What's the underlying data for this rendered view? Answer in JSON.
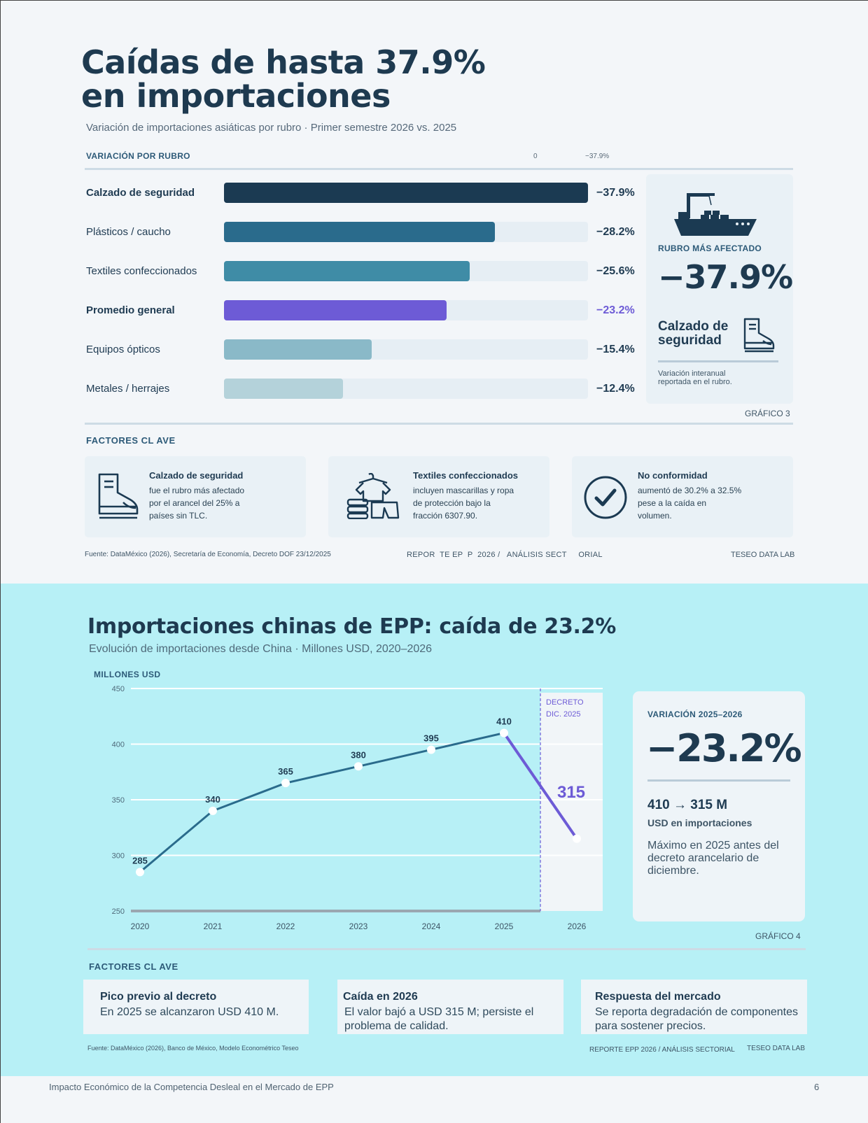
{
  "section1": {
    "title_line1": "Caídas de hasta 37.9%",
    "title_line2": "en importaciones",
    "subtitle": "Variación de importaciones asiáticas por rubro · Primer semestre 2026 vs. 2025",
    "axis_header": "VARIACIÓN POR RUBRO",
    "axis_zero": "0",
    "axis_max": "−37.9%",
    "highlight": {
      "tag": "RUBRO MÁS AFECTADO",
      "value": "−37.9%",
      "name": "Calzado de seguridad",
      "note": "Variación interanual reportada en el rubro.",
      "ship_icon": "cargo-ship-icon",
      "boot_icon": "safety-boot-icon"
    },
    "chart_label": "GRÁFICO 3",
    "factors_header": "FACTORES CL  AVE",
    "factors": [
      {
        "title": "Calzado de seguridad",
        "text": "fue el rubro más afectado por el arancel del 25% a países sin TLC.",
        "icon": "safety-boot-icon"
      },
      {
        "title": "Textiles confeccionados",
        "text": "incluyen mascarillas y ropa de protección bajo la fracción 6307.90.",
        "icon": "clothing-icon"
      },
      {
        "title": "No conformidad",
        "text": "aumentó de 30.2% a 32.5% pese a la caída en volumen.",
        "icon": "check-circle-icon"
      }
    ],
    "source": "Fuente: DataMéxico (2026), Secretaría de Economía, Decreto DOF 23/12/2025",
    "report": "REPOR  TE EP  P  2026 /   ANÁLISIS SECT     ORIAL",
    "lab": "TESEO DATA LAB"
  },
  "section2": {
    "title": "Importaciones chinas de EPP: caída de 23.2%",
    "subtitle": "Evolución de importaciones desde China · Millones USD, 2020–2026",
    "y_label": "MILLONES USD",
    "decree_label_1": "DECRETO",
    "decree_label_2": "DIC. 2025",
    "highlight": {
      "tag": "VARIACIÓN 2025–2026",
      "value": "−23.2%",
      "range": "410 → 315 M",
      "unit": "USD en importaciones",
      "note": "Máximo en 2025 antes del decreto arancelario de diciembre."
    },
    "chart_label": "GRÁFICO 4",
    "factors_header": "FACTORES CL  AVE",
    "factors": [
      {
        "title": "Pico previo al decreto",
        "text": "En 2025 se alcanzaron USD 410 M."
      },
      {
        "title": "Caída en 2026",
        "text": "El valor bajó a USD 315 M; persiste el problema de calidad."
      },
      {
        "title": "Respuesta del mercado",
        "text": "Se reporta degradación de componentes para sostener precios."
      }
    ],
    "source": "Fuente: DataMéxico (2026), Banco de México, Modelo Econométrico Teseo",
    "report": "REPORTE EPP 2026 / ANÁLISIS SECTORIAL",
    "lab": "TESEO DATA LAB"
  },
  "footer": {
    "left": "Impacto Económico de la Competencia Desleal en el Mercado de EPP",
    "page": "6"
  },
  "colors": {
    "navy": "#1b3a52",
    "teal_dark": "#2a6b8c",
    "teal": "#3f8ca6",
    "purple": "#6d5bd6",
    "light_teal": "#8ab9c8",
    "pale_teal": "#b4d2da",
    "cyan_bg": "#b7f0f6"
  },
  "chart_data": [
    {
      "type": "bar",
      "orientation": "horizontal",
      "categories": [
        "Calzado de seguridad",
        "Plásticos / caucho",
        "Textiles confeccionados",
        "Promedio general",
        "Equipos ópticos",
        "Metales / herrajes"
      ],
      "values": [
        -37.9,
        -28.2,
        -25.6,
        -23.2,
        -15.4,
        -12.4
      ],
      "value_labels": [
        "−37.9%",
        "−28.2%",
        "−25.6%",
        "−23.2%",
        "−15.4%",
        "−12.4%"
      ],
      "bold": [
        true,
        false,
        false,
        true,
        false,
        false
      ],
      "colors": [
        "#1b3a52",
        "#2a6b8c",
        "#3f8ca6",
        "#6d5bd6",
        "#8ab9c8",
        "#b4d2da"
      ],
      "xlim": [
        0,
        -37.9
      ],
      "title": "VARIACIÓN POR RUBRO"
    },
    {
      "type": "line",
      "x": [
        "2020",
        "2021",
        "2022",
        "2023",
        "2024",
        "2025",
        "2026"
      ],
      "values": [
        285,
        340,
        365,
        380,
        395,
        410,
        315
      ],
      "data_labels": [
        "285",
        "340",
        "365",
        "380",
        "395",
        "410",
        "315"
      ],
      "ylim": [
        250,
        450
      ],
      "yticks": [
        250,
        300,
        350,
        400,
        450
      ],
      "ylabel": "MILLONES USD",
      "grid": true,
      "colors": {
        "line": "#2a6b8c",
        "post_decree": "#6d5bd6"
      }
    }
  ]
}
